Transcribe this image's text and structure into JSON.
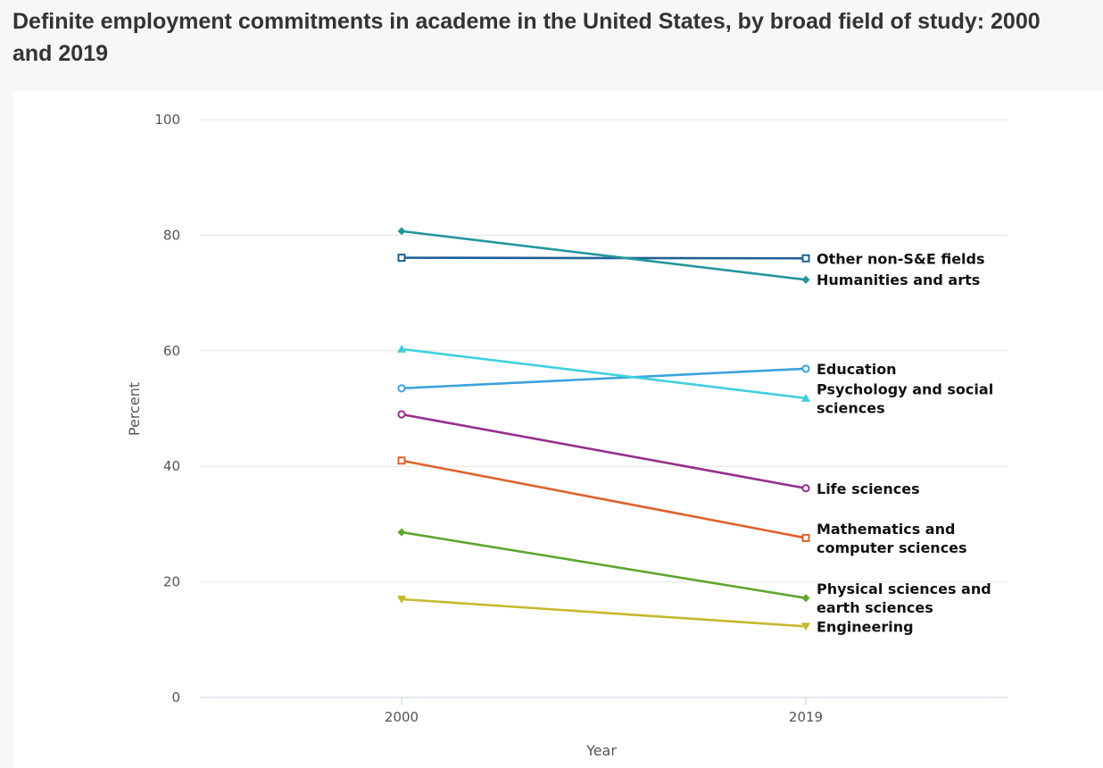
{
  "chart_data": {
    "type": "line",
    "title": "Definite employment commitments in academe in the United States, by broad field of study: 2000 and 2019",
    "xlabel": "Year",
    "ylabel": "Percent",
    "categories": [
      "2000",
      "2019"
    ],
    "ylim": [
      0,
      100
    ],
    "yticks": [
      "0",
      "20",
      "40",
      "60",
      "80",
      "100"
    ],
    "grid": true,
    "legend": "inline labels at right end of lines",
    "series": [
      {
        "name": "Other non-S&E fields",
        "label_lines": [
          "Other non-S&E fields"
        ],
        "values": [
          76.1,
          76.0
        ],
        "color": "#1f5f93",
        "marker": "square-open"
      },
      {
        "name": "Humanities and arts",
        "label_lines": [
          "Humanities and arts"
        ],
        "values": [
          80.7,
          72.3
        ],
        "color": "#23969b",
        "marker": "diamond"
      },
      {
        "name": "Education",
        "label_lines": [
          "Education"
        ],
        "values": [
          53.5,
          56.9
        ],
        "color": "#3ba2dd",
        "marker": "circle-open"
      },
      {
        "name": "Psychology and social sciences",
        "label_lines": [
          "Psychology and social",
          "sciences"
        ],
        "values": [
          60.3,
          51.8
        ],
        "color": "#3fd0de",
        "marker": "triangle-up"
      },
      {
        "name": "Life sciences",
        "label_lines": [
          "Life sciences"
        ],
        "values": [
          49.0,
          36.2
        ],
        "color": "#952f8d",
        "marker": "circle-open"
      },
      {
        "name": "Mathematics and computer sciences",
        "label_lines": [
          "Mathematics and",
          "computer sciences"
        ],
        "values": [
          41.0,
          27.6
        ],
        "color": "#e0622a",
        "marker": "square-open"
      },
      {
        "name": "Physical sciences and earth sciences",
        "label_lines": [
          "Physical sciences and",
          "earth sciences"
        ],
        "values": [
          28.6,
          17.2
        ],
        "color": "#5ea62d",
        "marker": "diamond"
      },
      {
        "name": "Engineering",
        "label_lines": [
          "Engineering"
        ],
        "values": [
          17.0,
          12.3
        ],
        "color": "#c9b82c",
        "marker": "triangle-down"
      }
    ]
  }
}
